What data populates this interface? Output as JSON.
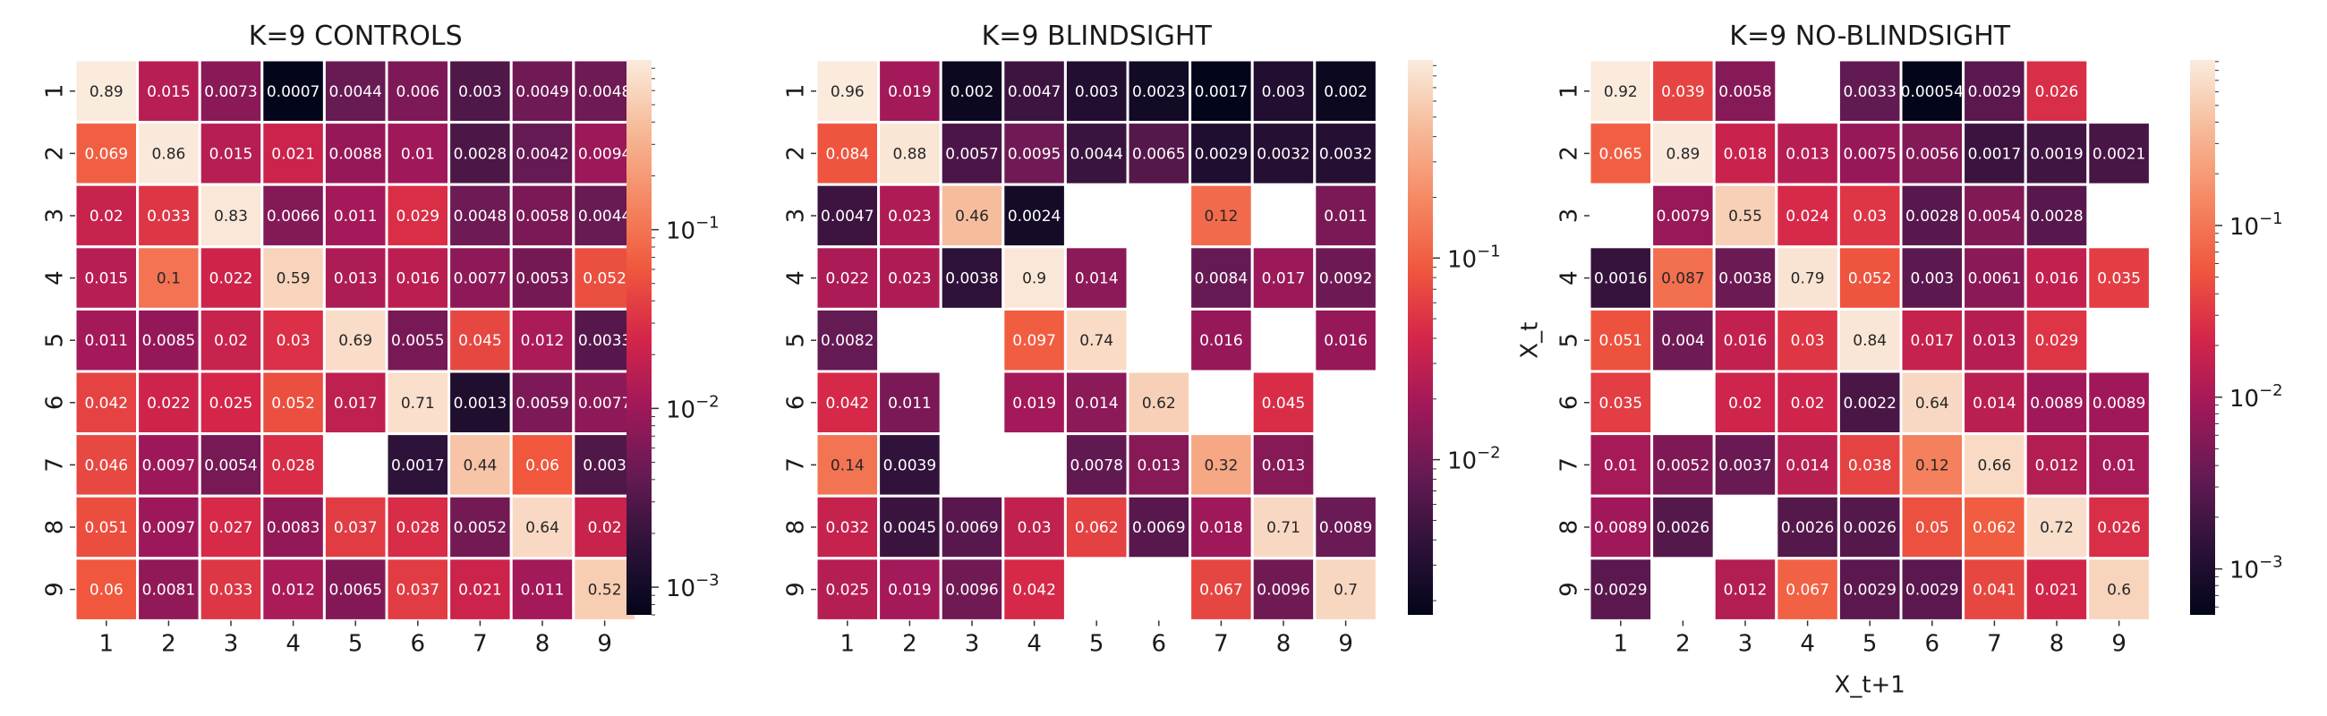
{
  "figure": {
    "background": "#ffffff",
    "cell_border_color": "#ffffff",
    "missing_cell_color": "#ffffff"
  },
  "chart_data": [
    {
      "type": "heatmap",
      "title": "K=9 CONTROLS",
      "xlabel": "",
      "ylabel": "",
      "x_tick_labels": [
        "1",
        "2",
        "3",
        "4",
        "5",
        "6",
        "7",
        "8",
        "9"
      ],
      "y_tick_labels": [
        "1",
        "2",
        "3",
        "4",
        "5",
        "6",
        "7",
        "8",
        "9"
      ],
      "color_scale": "log",
      "colormap": "rocket",
      "vmin": 0.0007,
      "vmax": 0.89,
      "colorbar_ticks": [
        {
          "value": 0.001,
          "base": "10",
          "exp": "−3"
        },
        {
          "value": 0.01,
          "base": "10",
          "exp": "−2"
        },
        {
          "value": 0.1,
          "base": "10",
          "exp": "−1"
        }
      ],
      "matrix": [
        [
          0.89,
          0.015,
          0.0073,
          0.0007,
          0.0044,
          0.006,
          0.003,
          0.0049,
          0.0048
        ],
        [
          0.069,
          0.86,
          0.015,
          0.021,
          0.0088,
          0.01,
          0.0028,
          0.0042,
          0.0094
        ],
        [
          0.02,
          0.033,
          0.83,
          0.0066,
          0.011,
          0.029,
          0.0048,
          0.0058,
          0.0044
        ],
        [
          0.015,
          0.1,
          0.022,
          0.59,
          0.013,
          0.016,
          0.0077,
          0.0053,
          0.052
        ],
        [
          0.011,
          0.0085,
          0.02,
          0.03,
          0.69,
          0.0055,
          0.045,
          0.012,
          0.0033
        ],
        [
          0.042,
          0.022,
          0.025,
          0.052,
          0.017,
          0.71,
          0.0013,
          0.0059,
          0.0077
        ],
        [
          0.046,
          0.0097,
          0.0054,
          0.028,
          null,
          0.0017,
          0.44,
          0.06,
          0.003
        ],
        [
          0.051,
          0.0097,
          0.027,
          0.0083,
          0.037,
          0.028,
          0.0052,
          0.64,
          0.02
        ],
        [
          0.06,
          0.0081,
          0.033,
          0.012,
          0.0065,
          0.037,
          0.021,
          0.011,
          0.52
        ]
      ]
    },
    {
      "type": "heatmap",
      "title": "K=9 BLINDSIGHT",
      "xlabel": "",
      "ylabel": "",
      "x_tick_labels": [
        "1",
        "2",
        "3",
        "4",
        "5",
        "6",
        "7",
        "8",
        "9"
      ],
      "y_tick_labels": [
        "1",
        "2",
        "3",
        "4",
        "5",
        "6",
        "7",
        "8",
        "9"
      ],
      "color_scale": "log",
      "colormap": "rocket",
      "vmin": 0.0017,
      "vmax": 0.96,
      "colorbar_ticks": [
        {
          "value": 0.01,
          "base": "10",
          "exp": "−2"
        },
        {
          "value": 0.1,
          "base": "10",
          "exp": "−1"
        }
      ],
      "matrix": [
        [
          0.96,
          0.019,
          0.002,
          0.0047,
          0.003,
          0.0023,
          0.0017,
          0.003,
          0.002
        ],
        [
          0.084,
          0.88,
          0.0057,
          0.0095,
          0.0044,
          0.0065,
          0.0029,
          0.0032,
          0.0032
        ],
        [
          0.0047,
          0.023,
          0.46,
          0.0024,
          null,
          null,
          0.12,
          null,
          0.011
        ],
        [
          0.022,
          0.023,
          0.0038,
          0.9,
          0.014,
          null,
          0.0084,
          0.017,
          0.0092
        ],
        [
          0.0082,
          null,
          null,
          0.097,
          0.74,
          null,
          0.016,
          null,
          0.016
        ],
        [
          0.042,
          0.011,
          null,
          0.019,
          0.014,
          0.62,
          null,
          0.045,
          null
        ],
        [
          0.14,
          0.0039,
          null,
          null,
          0.0078,
          0.013,
          0.32,
          0.013,
          null
        ],
        [
          0.032,
          0.0045,
          0.0069,
          0.03,
          0.062,
          0.0069,
          0.018,
          0.71,
          0.0089
        ],
        [
          0.025,
          0.019,
          0.0096,
          0.042,
          null,
          null,
          0.067,
          0.0096,
          0.7
        ]
      ]
    },
    {
      "type": "heatmap",
      "title": "K=9 NO-BLINDSIGHT",
      "xlabel": "X_t+1",
      "ylabel": "X_t",
      "x_tick_labels": [
        "1",
        "2",
        "3",
        "4",
        "5",
        "6",
        "7",
        "8",
        "9"
      ],
      "y_tick_labels": [
        "1",
        "2",
        "3",
        "4",
        "5",
        "6",
        "7",
        "8",
        "9"
      ],
      "color_scale": "log",
      "colormap": "rocket",
      "vmin": 0.00054,
      "vmax": 0.92,
      "colorbar_ticks": [
        {
          "value": 0.001,
          "base": "10",
          "exp": "−3"
        },
        {
          "value": 0.01,
          "base": "10",
          "exp": "−2"
        },
        {
          "value": 0.1,
          "base": "10",
          "exp": "−1"
        }
      ],
      "matrix": [
        [
          0.92,
          0.039,
          0.0058,
          null,
          0.0033,
          0.00054,
          0.0029,
          0.026,
          null
        ],
        [
          0.065,
          0.89,
          0.018,
          0.013,
          0.0075,
          0.0056,
          0.0017,
          0.0019,
          0.0021
        ],
        [
          null,
          0.0079,
          0.55,
          0.024,
          0.03,
          0.0028,
          0.0054,
          0.0028,
          null
        ],
        [
          0.0016,
          0.087,
          0.0038,
          0.79,
          0.052,
          0.003,
          0.0061,
          0.016,
          0.035
        ],
        [
          0.051,
          0.004,
          0.016,
          0.03,
          0.84,
          0.017,
          0.013,
          0.029,
          null
        ],
        [
          0.035,
          null,
          0.02,
          0.02,
          0.0022,
          0.64,
          0.014,
          0.0089,
          0.0089
        ],
        [
          0.01,
          0.0052,
          0.0037,
          0.014,
          0.038,
          0.12,
          0.66,
          0.012,
          0.01
        ],
        [
          0.0089,
          0.0026,
          null,
          0.0026,
          0.0026,
          0.05,
          0.062,
          0.72,
          0.026
        ],
        [
          0.0029,
          null,
          0.012,
          0.067,
          0.0029,
          0.0029,
          0.041,
          0.021,
          0.6
        ]
      ]
    }
  ]
}
